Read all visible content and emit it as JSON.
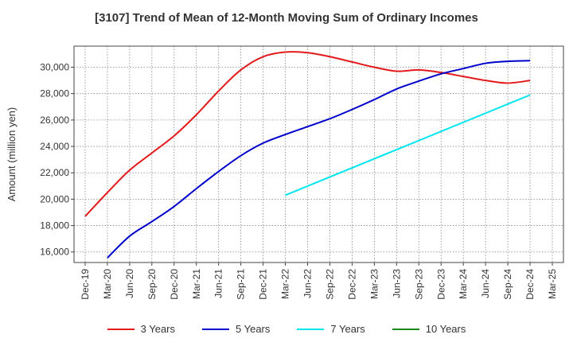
{
  "chart_data": {
    "type": "line",
    "title": "[3107]  Trend of Mean of 12-Month Moving Sum of Ordinary Incomes",
    "xlabel": "",
    "ylabel": "Amount (million yen)",
    "ylim": [
      15200,
      31600
    ],
    "yticks": [
      16000,
      18000,
      20000,
      22000,
      24000,
      26000,
      28000,
      30000
    ],
    "ytick_labels": [
      "16,000",
      "18,000",
      "20,000",
      "22,000",
      "24,000",
      "26,000",
      "28,000",
      "30,000"
    ],
    "x_ticks": [
      "Dec-19",
      "Mar-20",
      "Jun-20",
      "Sep-20",
      "Dec-20",
      "Mar-21",
      "Jun-21",
      "Sep-21",
      "Dec-21",
      "Mar-22",
      "Jun-22",
      "Sep-22",
      "Dec-22",
      "Mar-23",
      "Jun-23",
      "Sep-23",
      "Dec-23",
      "Mar-24",
      "Jun-24",
      "Sep-24",
      "Dec-24",
      "Mar-25"
    ],
    "grid": true,
    "legend_position": "bottom",
    "series": [
      {
        "name": "3 Years",
        "color": "#e31a1c",
        "x": [
          "Dec-19",
          "Mar-20",
          "Jun-20",
          "Sep-20",
          "Dec-20",
          "Mar-21",
          "Jun-21",
          "Sep-21",
          "Dec-21",
          "Mar-22",
          "Jun-22",
          "Sep-22",
          "Dec-22",
          "Mar-23",
          "Jun-23",
          "Sep-23",
          "Dec-23",
          "Mar-24",
          "Jun-24",
          "Sep-24",
          "Dec-24"
        ],
        "values": [
          18700,
          20500,
          22200,
          23500,
          24800,
          26400,
          28200,
          29800,
          30800,
          31150,
          31100,
          30800,
          30400,
          30000,
          29700,
          29800,
          29600,
          29300,
          29000,
          28800,
          29000
        ]
      },
      {
        "name": "5 Years",
        "color": "#0000cc",
        "x": [
          "Mar-20",
          "Jun-20",
          "Sep-20",
          "Dec-20",
          "Mar-21",
          "Jun-21",
          "Sep-21",
          "Dec-21",
          "Mar-22",
          "Jun-22",
          "Sep-22",
          "Dec-22",
          "Mar-23",
          "Jun-23",
          "Sep-23",
          "Dec-23",
          "Mar-24",
          "Jun-24",
          "Sep-24",
          "Dec-24"
        ],
        "values": [
          15550,
          17200,
          18300,
          19450,
          20800,
          22100,
          23300,
          24250,
          24900,
          25500,
          26100,
          26800,
          27550,
          28350,
          28950,
          29500,
          29900,
          30300,
          30450,
          30500
        ]
      },
      {
        "name": "7 Years",
        "color": "#00e5ee",
        "x": [
          "Mar-22",
          "Dec-24"
        ],
        "values": [
          20300,
          27900
        ]
      },
      {
        "name": "10 Years",
        "color": "#1a8a1a",
        "x": [],
        "values": []
      }
    ]
  }
}
